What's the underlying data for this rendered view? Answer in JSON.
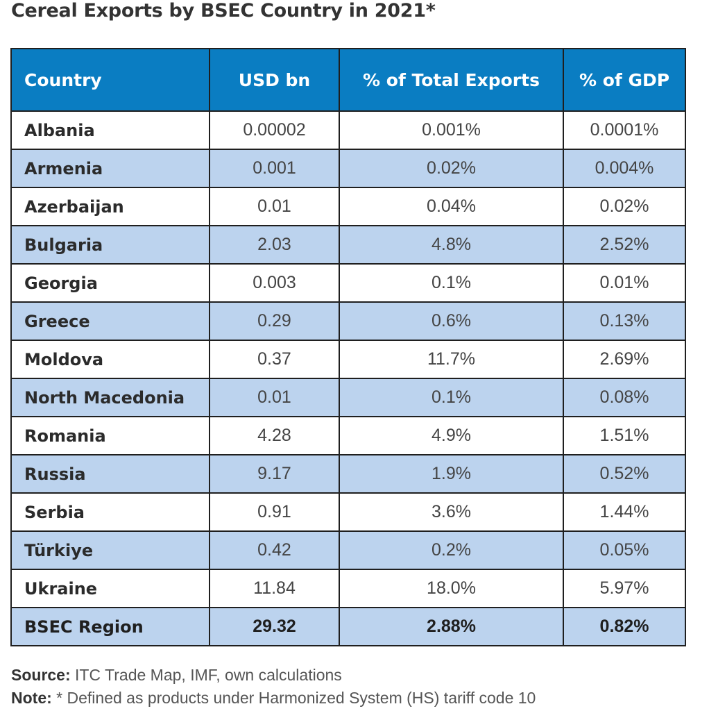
{
  "title": "Cereal Exports by BSEC Country in 2021*",
  "headers": [
    "Country",
    "USD bn",
    "% of Total Exports",
    "% of GDP"
  ],
  "rows": [
    [
      "Albania",
      "0.00002",
      "0.001%",
      "0.0001%"
    ],
    [
      "Armenia",
      "0.001",
      "0.02%",
      "0.004%"
    ],
    [
      "Azerbaijan",
      "0.01",
      "0.04%",
      "0.02%"
    ],
    [
      "Bulgaria",
      "2.03",
      "4.8%",
      "2.52%"
    ],
    [
      "Georgia",
      "0.003",
      "0.1%",
      "0.01%"
    ],
    [
      "Greece",
      "0.29",
      "0.6%",
      "0.13%"
    ],
    [
      "Moldova",
      "0.37",
      "11.7%",
      "2.69%"
    ],
    [
      "North Macedonia",
      "0.01",
      "0.1%",
      "0.08%"
    ],
    [
      "Romania",
      "4.28",
      "4.9%",
      "1.51%"
    ],
    [
      "Russia",
      "9.17",
      "1.9%",
      "0.52%"
    ],
    [
      "Serbia",
      "0.91",
      "3.6%",
      "1.44%"
    ],
    [
      "Türkiye",
      "0.42",
      "0.2%",
      "0.05%"
    ],
    [
      "Ukraine",
      "11.84",
      "18.0%",
      "5.97%"
    ]
  ],
  "total": [
    "BSEC Region",
    "29.32",
    "2.88%",
    "0.82%"
  ],
  "source": {
    "label": "Source:",
    "text": " ITC Trade Map, IMF, own calculations"
  },
  "note": {
    "label": "Note:",
    "text": " * Defined as products under Harmonized System (HS) tariff code 10"
  },
  "colors": {
    "header_bg": "#0a7dc2",
    "alt_row_bg": "#bcd3ee",
    "border": "#1f1f1f"
  }
}
